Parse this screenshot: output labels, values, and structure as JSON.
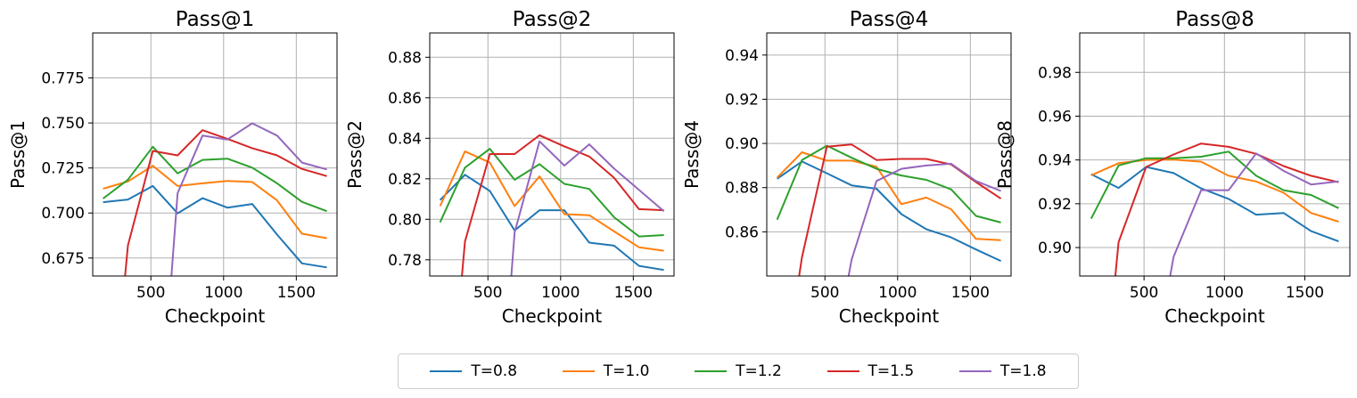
{
  "chart_data": [
    {
      "type": "line",
      "title": "Pass@1",
      "xlabel": "Checkpoint",
      "ylabel": "Pass@1",
      "xlim": [
        100,
        1780
      ],
      "ylim": [
        0.665,
        0.8
      ],
      "xticks": [
        500,
        1000,
        1500
      ],
      "yticks": [
        0.675,
        0.7,
        0.725,
        0.75,
        0.775
      ],
      "ytick_labels": [
        "0.675",
        "0.700",
        "0.725",
        "0.750",
        "0.775"
      ],
      "grid": true,
      "series": [
        {
          "name": "T=0.8",
          "color": "#1f77b4",
          "x": [
            171,
            342,
            513,
            684,
            855,
            1026,
            1197,
            1368,
            1539,
            1710
          ],
          "y": [
            0.706,
            0.7075,
            0.715,
            0.6998,
            0.7082,
            0.703,
            0.705,
            0.688,
            0.672,
            0.6698
          ]
        },
        {
          "name": "T=1.0",
          "color": "#ff7f0e",
          "x": [
            171,
            342,
            513,
            684,
            855,
            1026,
            1197,
            1368,
            1539,
            1710
          ],
          "y": [
            0.7135,
            0.7175,
            0.7262,
            0.715,
            0.7165,
            0.7178,
            0.7172,
            0.707,
            0.6885,
            0.686
          ]
        },
        {
          "name": "T=1.2",
          "color": "#2ca02c",
          "x": [
            171,
            342,
            513,
            684,
            855,
            1026,
            1197,
            1368,
            1539,
            1710
          ],
          "y": [
            0.708,
            0.7185,
            0.7368,
            0.722,
            0.7295,
            0.7302,
            0.7252,
            0.7165,
            0.7062,
            0.701
          ]
        },
        {
          "name": "T=1.5",
          "color": "#d62728",
          "x": [
            320,
            342,
            513,
            684,
            855,
            1026,
            1197,
            1368,
            1539,
            1710
          ],
          "y": [
            0.663,
            0.682,
            0.7345,
            0.732,
            0.746,
            0.7412,
            0.736,
            0.732,
            0.7245,
            0.7205
          ]
        },
        {
          "name": "T=1.8",
          "color": "#9467bd",
          "x": [
            640,
            684,
            855,
            1026,
            1197,
            1368,
            1539,
            1710
          ],
          "y": [
            0.664,
            0.711,
            0.743,
            0.7408,
            0.7498,
            0.743,
            0.728,
            0.7242
          ]
        }
      ]
    },
    {
      "type": "line",
      "title": "Pass@2",
      "xlabel": "Checkpoint",
      "ylabel": "Pass@2",
      "xlim": [
        100,
        1780
      ],
      "ylim": [
        0.772,
        0.892
      ],
      "xticks": [
        500,
        1000,
        1500
      ],
      "yticks": [
        0.78,
        0.8,
        0.82,
        0.84,
        0.86,
        0.88
      ],
      "ytick_labels": [
        "0.78",
        "0.80",
        "0.82",
        "0.84",
        "0.86",
        "0.88"
      ],
      "grid": true,
      "series": [
        {
          "name": "T=0.8",
          "color": "#1f77b4",
          "x": [
            171,
            342,
            513,
            684,
            855,
            1026,
            1197,
            1368,
            1539,
            1710
          ],
          "y": [
            0.8095,
            0.822,
            0.814,
            0.7945,
            0.8045,
            0.8045,
            0.7885,
            0.787,
            0.777,
            0.775
          ]
        },
        {
          "name": "T=1.0",
          "color": "#ff7f0e",
          "x": [
            171,
            342,
            513,
            684,
            855,
            1026,
            1197,
            1368,
            1539,
            1710
          ],
          "y": [
            0.8065,
            0.8335,
            0.828,
            0.8065,
            0.8212,
            0.8025,
            0.802,
            0.794,
            0.7862,
            0.7845
          ]
        },
        {
          "name": "T=1.2",
          "color": "#2ca02c",
          "x": [
            171,
            342,
            513,
            684,
            855,
            1026,
            1197,
            1368,
            1539,
            1710
          ],
          "y": [
            0.7985,
            0.8255,
            0.8348,
            0.8195,
            0.8272,
            0.8175,
            0.815,
            0.801,
            0.7915,
            0.7922
          ]
        },
        {
          "name": "T=1.5",
          "color": "#d62728",
          "x": [
            320,
            342,
            513,
            684,
            855,
            1026,
            1197,
            1368,
            1539,
            1710
          ],
          "y": [
            0.771,
            0.789,
            0.8322,
            0.8322,
            0.8415,
            0.836,
            0.831,
            0.8205,
            0.805,
            0.8045
          ]
        },
        {
          "name": "T=1.8",
          "color": "#9467bd",
          "x": [
            660,
            684,
            855,
            1026,
            1197,
            1368,
            1539,
            1710
          ],
          "y": [
            0.771,
            0.7935,
            0.8385,
            0.8265,
            0.837,
            0.825,
            0.8145,
            0.804
          ]
        }
      ]
    },
    {
      "type": "line",
      "title": "Pass@4",
      "xlabel": "Checkpoint",
      "ylabel": "Pass@4",
      "xlim": [
        100,
        1780
      ],
      "ylim": [
        0.84,
        0.95
      ],
      "xticks": [
        500,
        1000,
        1500
      ],
      "yticks": [
        0.86,
        0.88,
        0.9,
        0.92,
        0.94
      ],
      "ytick_labels": [
        "0.86",
        "0.88",
        "0.90",
        "0.92",
        "0.94"
      ],
      "grid": true,
      "series": [
        {
          "name": "T=0.8",
          "color": "#1f77b4",
          "x": [
            171,
            342,
            513,
            684,
            855,
            1026,
            1197,
            1368,
            1539,
            1710
          ],
          "y": [
            0.884,
            0.8918,
            0.8865,
            0.881,
            0.8795,
            0.868,
            0.8612,
            0.8575,
            0.852,
            0.8468
          ]
        },
        {
          "name": "T=1.0",
          "color": "#ff7f0e",
          "x": [
            171,
            342,
            513,
            684,
            855,
            1026,
            1197,
            1368,
            1539,
            1710
          ],
          "y": [
            0.8845,
            0.896,
            0.8922,
            0.8922,
            0.8895,
            0.8725,
            0.8755,
            0.8702,
            0.8568,
            0.8562
          ]
        },
        {
          "name": "T=1.2",
          "color": "#2ca02c",
          "x": [
            171,
            342,
            513,
            684,
            855,
            1026,
            1197,
            1368,
            1539,
            1710
          ],
          "y": [
            0.8655,
            0.8925,
            0.899,
            0.8935,
            0.8885,
            0.8855,
            0.8835,
            0.8792,
            0.8672,
            0.8642
          ]
        },
        {
          "name": "T=1.5",
          "color": "#d62728",
          "x": [
            320,
            342,
            513,
            684,
            855,
            1026,
            1197,
            1368,
            1539,
            1710
          ],
          "y": [
            0.839,
            0.8485,
            0.8985,
            0.8995,
            0.8925,
            0.893,
            0.893,
            0.8905,
            0.8825,
            0.875
          ]
        },
        {
          "name": "T=1.8",
          "color": "#9467bd",
          "x": [
            660,
            684,
            855,
            1026,
            1197,
            1368,
            1539,
            1710
          ],
          "y": [
            0.839,
            0.8475,
            0.883,
            0.8885,
            0.89,
            0.8908,
            0.883,
            0.8785
          ]
        }
      ]
    },
    {
      "type": "line",
      "title": "Pass@8",
      "xlabel": "Checkpoint",
      "ylabel": "Pass@8",
      "xlim": [
        100,
        1780
      ],
      "ylim": [
        0.887,
        0.998
      ],
      "xticks": [
        500,
        1000,
        1500
      ],
      "yticks": [
        0.9,
        0.92,
        0.94,
        0.96,
        0.98
      ],
      "ytick_labels": [
        "0.90",
        "0.92",
        "0.94",
        "0.96",
        "0.98"
      ],
      "grid": true,
      "series": [
        {
          "name": "T=0.8",
          "color": "#1f77b4",
          "x": [
            171,
            342,
            513,
            684,
            855,
            1026,
            1197,
            1368,
            1539,
            1710
          ],
          "y": [
            0.9335,
            0.9272,
            0.9368,
            0.934,
            0.927,
            0.9222,
            0.915,
            0.9158,
            0.9075,
            0.9028
          ]
        },
        {
          "name": "T=1.0",
          "color": "#ff7f0e",
          "x": [
            171,
            342,
            513,
            684,
            855,
            1026,
            1197,
            1368,
            1539,
            1710
          ],
          "y": [
            0.933,
            0.9385,
            0.94,
            0.9402,
            0.9392,
            0.9328,
            0.9302,
            0.925,
            0.9158,
            0.9118
          ]
        },
        {
          "name": "T=1.2",
          "color": "#2ca02c",
          "x": [
            171,
            342,
            513,
            684,
            855,
            1026,
            1197,
            1368,
            1539,
            1710
          ],
          "y": [
            0.9132,
            0.9375,
            0.9408,
            0.9408,
            0.9415,
            0.9438,
            0.9328,
            0.9262,
            0.924,
            0.918
          ]
        },
        {
          "name": "T=1.5",
          "color": "#d62728",
          "x": [
            320,
            342,
            513,
            684,
            855,
            1026,
            1197,
            1368,
            1539,
            1710
          ],
          "y": [
            0.886,
            0.9025,
            0.9368,
            0.9425,
            0.9475,
            0.946,
            0.9428,
            0.9372,
            0.9328,
            0.9298
          ]
        },
        {
          "name": "T=1.8",
          "color": "#9467bd",
          "x": [
            660,
            684,
            855,
            1026,
            1197,
            1368,
            1539,
            1710
          ],
          "y": [
            0.886,
            0.8958,
            0.9262,
            0.9262,
            0.943,
            0.935,
            0.9288,
            0.9302
          ]
        }
      ]
    }
  ],
  "legend": {
    "placement": "bottom-center",
    "items": [
      {
        "label": "T=0.8",
        "color": "#1f77b4"
      },
      {
        "label": "T=1.0",
        "color": "#ff7f0e"
      },
      {
        "label": "T=1.2",
        "color": "#2ca02c"
      },
      {
        "label": "T=1.5",
        "color": "#d62728"
      },
      {
        "label": "T=1.8",
        "color": "#9467bd"
      }
    ]
  }
}
